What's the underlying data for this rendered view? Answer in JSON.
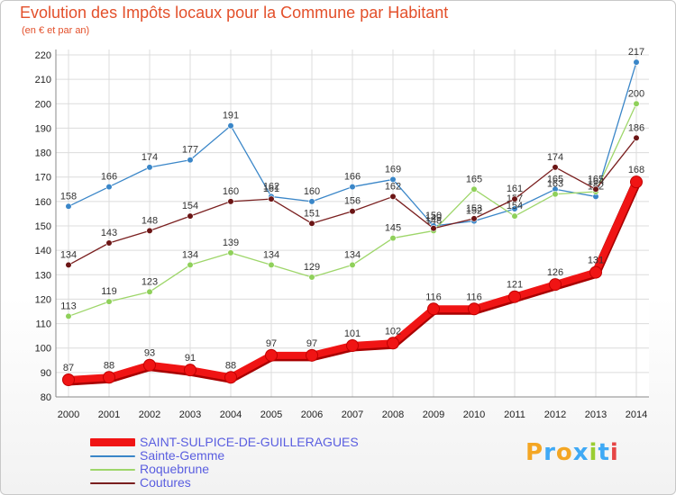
{
  "header": {
    "title": "Evolution des Impôts locaux pour la Commune par Habitant",
    "subtitle": "(en € et par an)"
  },
  "logo": {
    "text": "Proxiti",
    "letters": [
      "P",
      "r",
      "o",
      "x",
      "i",
      "t",
      "i"
    ],
    "colors": [
      "#f4a623",
      "#3fa9f5",
      "#f4a623",
      "#3fa9f5",
      "#9acd32",
      "#3fa9f5",
      "#e64545"
    ]
  },
  "chart_data": {
    "type": "line",
    "title": "Evolution des Impôts locaux pour la Commune par Habitant",
    "subtitle": "(en € et par an)",
    "xlabel": "",
    "ylabel": "",
    "ylim": [
      80,
      220
    ],
    "yticks": [
      80,
      90,
      100,
      110,
      120,
      130,
      140,
      150,
      160,
      170,
      180,
      190,
      200,
      210,
      220
    ],
    "x": [
      2000,
      2001,
      2002,
      2003,
      2004,
      2005,
      2006,
      2007,
      2008,
      2009,
      2010,
      2011,
      2012,
      2013,
      2014
    ],
    "grid": true,
    "legend_position": "bottom-left",
    "series": [
      {
        "name": "Sainte-Gemme",
        "color": "#3a86c8",
        "marker": "#3a86c8",
        "values": [
          158,
          166,
          174,
          177,
          191,
          162,
          160,
          166,
          169,
          150,
          152,
          157,
          165,
          162,
          217
        ],
        "labels": [
          "158",
          "166",
          "174",
          "177",
          "191",
          "162",
          "160",
          "166",
          "169",
          "150",
          "152",
          "157",
          "165",
          "162",
          "217"
        ]
      },
      {
        "name": "Roquebrune",
        "color": "#9ed66a",
        "marker": "#8fd05a",
        "values": [
          113,
          119,
          123,
          134,
          139,
          134,
          129,
          134,
          145,
          148,
          165,
          154,
          163,
          164,
          200
        ],
        "labels": [
          "113",
          "119",
          "123",
          "134",
          "139",
          "134",
          "129",
          "134",
          "145",
          "148",
          "165",
          "154",
          "163",
          "164",
          "200"
        ]
      },
      {
        "name": "Coutures",
        "color": "#7a1f1f",
        "marker": "#6b1515",
        "values": [
          134,
          143,
          148,
          154,
          160,
          161,
          151,
          156,
          162,
          149,
          153,
          161,
          174,
          165,
          186
        ],
        "labels": [
          "134",
          "143",
          "148",
          "154",
          "160",
          "161",
          "151",
          "156",
          "162",
          "149",
          "153",
          "161",
          "174",
          "165",
          "186"
        ]
      },
      {
        "name": "SAINT-SULPICE-DE-GUILLERAGUES",
        "color": "#f01414",
        "marker": "#f01414",
        "values": [
          87,
          88,
          93,
          91,
          88,
          97,
          97,
          101,
          102,
          116,
          116,
          121,
          126,
          131,
          168
        ],
        "labels": [
          "87",
          "88",
          "93",
          "91",
          "88",
          "97",
          "97",
          "101",
          "102",
          "116",
          "116",
          "121",
          "126",
          "131",
          "168"
        ]
      }
    ],
    "legend": [
      {
        "name": "SAINT-SULPICE-DE-GUILLERAGUES",
        "color": "#f01414"
      },
      {
        "name": "Sainte-Gemme",
        "color": "#3a86c8"
      },
      {
        "name": "Roquebrune",
        "color": "#9ed66a"
      },
      {
        "name": "Coutures",
        "color": "#7a1f1f"
      }
    ]
  }
}
